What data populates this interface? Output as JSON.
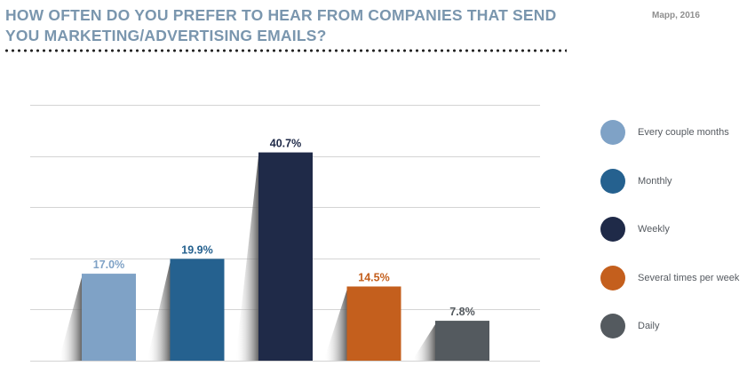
{
  "header": {
    "title": "HOW OFTEN DO YOU PREFER TO HEAR FROM COMPANIES THAT SEND YOU MARKETING/ADVERTISING EMAILS?",
    "source": "Mapp, 2016"
  },
  "chart_data": {
    "type": "bar",
    "categories": [
      "Every couple months",
      "Monthly",
      "Weekly",
      "Several times per week",
      "Daily"
    ],
    "values": [
      17.0,
      19.9,
      40.7,
      14.5,
      7.8
    ],
    "value_labels": [
      "17.0%",
      "19.9%",
      "40.7%",
      "14.5%",
      "7.8%"
    ],
    "colors": [
      "#7fa2c6",
      "#25618f",
      "#1f2a48",
      "#c45f1d",
      "#545a5f"
    ],
    "ylim": [
      0,
      50
    ],
    "grid": true,
    "legend_position": "right"
  }
}
